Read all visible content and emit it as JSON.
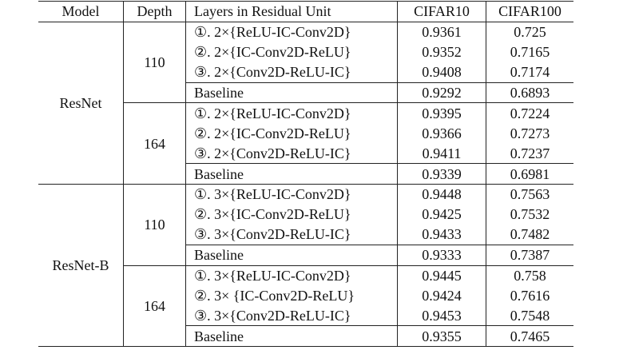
{
  "header": [
    "Model",
    "Depth",
    "Layers in Residual Unit",
    "CIFAR10",
    "CIFAR100"
  ],
  "groups": [
    {
      "model": "ResNet",
      "depths": [
        {
          "depth": 110,
          "rows": [
            [
              "①. 2×{ReLU-IC-Conv2D}",
              0.9361,
              0.725
            ],
            [
              "②. 2×{IC-Conv2D-ReLU}",
              0.9352,
              0.7165
            ],
            [
              "③. 2×{Conv2D-ReLU-IC}",
              0.9408,
              0.7174
            ],
            [
              "Baseline",
              0.9292,
              0.6893
            ]
          ]
        },
        {
          "depth": 164,
          "rows": [
            [
              "①. 2×{ReLU-IC-Conv2D}",
              0.9395,
              0.7224
            ],
            [
              "②. 2×{IC-Conv2D-ReLU}",
              0.9366,
              0.7273
            ],
            [
              "③. 2×{Conv2D-ReLU-IC}",
              0.9411,
              0.7237
            ],
            [
              "Baseline",
              0.9339,
              0.6981
            ]
          ]
        }
      ]
    },
    {
      "model": "ResNet-B",
      "depths": [
        {
          "depth": 110,
          "rows": [
            [
              "①. 3×{ReLU-IC-Conv2D}",
              0.9448,
              0.7563
            ],
            [
              "②. 3×{IC-Conv2D-ReLU}",
              0.9425,
              0.7532
            ],
            [
              "③. 3×{Conv2D-ReLU-IC}",
              0.9433,
              0.7482
            ],
            [
              "Baseline",
              0.9333,
              0.7387
            ]
          ]
        },
        {
          "depth": 164,
          "rows": [
            [
              "①. 3×{ReLU-IC-Conv2D}",
              0.9445,
              0.758
            ],
            [
              "②. 3× {IC-Conv2D-ReLU}",
              0.9424,
              0.7616
            ],
            [
              "③. 3×{Conv2D-ReLU-IC}",
              0.9453,
              0.7548
            ],
            [
              "Baseline",
              0.9355,
              0.7465
            ]
          ]
        }
      ]
    }
  ]
}
